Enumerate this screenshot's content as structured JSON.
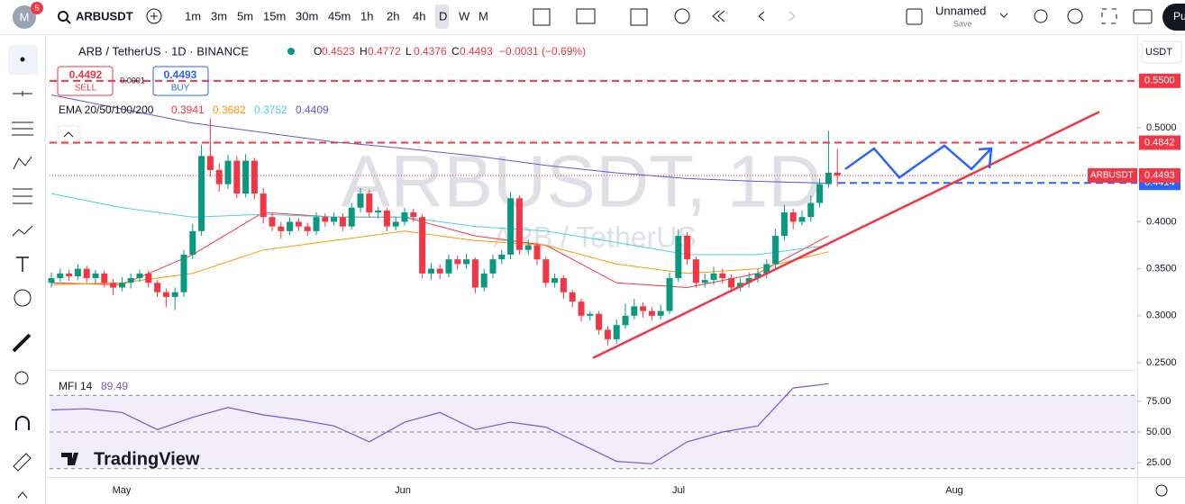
{
  "header": {
    "badge": "5",
    "symbol": "ARBUSDT",
    "intervals": [
      "1m",
      "3m",
      "5m",
      "15m",
      "30m",
      "45m",
      "1h",
      "2h",
      "4h",
      "D",
      "W",
      "M"
    ],
    "layout_name": "Unnamed",
    "save": "Save",
    "cut_button": "Pu"
  },
  "legend": {
    "symbol_line": "ARB / TetherUS · 1D · BINANCE",
    "ohlc": [
      {
        "label": "O",
        "value": 0.4523
      },
      {
        "label": "H",
        "value": 0.4772
      },
      {
        "label": "L",
        "value": 0.4376
      },
      {
        "label": "C",
        "value": 0.4493
      }
    ],
    "change": "−0.0031 (−0.69%)",
    "sell": {
      "price": 0.4492,
      "label": "SELL"
    },
    "buy": {
      "price": 0.4493,
      "label": "BUY"
    },
    "spread": 0.0001,
    "ema_title": "EMA 20/50/100/200",
    "ema_values": [
      0.3941,
      0.3682,
      0.3752,
      0.4409
    ]
  },
  "watermark": {
    "symbol": "ARBUSDT, 1D",
    "name": "ARB / TetherUS"
  },
  "brand": "TradingView",
  "currency": "USDT",
  "chart_data": {
    "type": "candlestick",
    "up_color": "#089981",
    "down_color": "#f23645",
    "candles": [
      [
        0.335,
        0.346,
        0.33,
        0.34
      ],
      [
        0.34,
        0.35,
        0.336,
        0.345
      ],
      [
        0.345,
        0.349,
        0.337,
        0.342
      ],
      [
        0.342,
        0.355,
        0.338,
        0.35
      ],
      [
        0.35,
        0.353,
        0.335,
        0.34
      ],
      [
        0.34,
        0.349,
        0.334,
        0.345
      ],
      [
        0.345,
        0.348,
        0.33,
        0.335
      ],
      [
        0.335,
        0.339,
        0.322,
        0.33
      ],
      [
        0.33,
        0.341,
        0.326,
        0.335
      ],
      [
        0.335,
        0.345,
        0.329,
        0.34
      ],
      [
        0.34,
        0.349,
        0.336,
        0.345
      ],
      [
        0.345,
        0.348,
        0.33,
        0.335
      ],
      [
        0.335,
        0.338,
        0.32,
        0.325
      ],
      [
        0.325,
        0.329,
        0.309,
        0.32
      ],
      [
        0.32,
        0.33,
        0.306,
        0.325
      ],
      [
        0.325,
        0.37,
        0.32,
        0.365
      ],
      [
        0.365,
        0.398,
        0.36,
        0.39
      ],
      [
        0.39,
        0.482,
        0.385,
        0.47
      ],
      [
        0.47,
        0.51,
        0.448,
        0.455
      ],
      [
        0.455,
        0.462,
        0.432,
        0.44
      ],
      [
        0.44,
        0.471,
        0.435,
        0.465
      ],
      [
        0.465,
        0.47,
        0.425,
        0.43
      ],
      [
        0.43,
        0.472,
        0.426,
        0.465
      ],
      [
        0.465,
        0.468,
        0.424,
        0.43
      ],
      [
        0.43,
        0.436,
        0.398,
        0.405
      ],
      [
        0.405,
        0.41,
        0.39,
        0.395
      ],
      [
        0.395,
        0.4,
        0.382,
        0.39
      ],
      [
        0.39,
        0.405,
        0.386,
        0.4
      ],
      [
        0.4,
        0.404,
        0.39,
        0.395
      ],
      [
        0.395,
        0.399,
        0.385,
        0.39
      ],
      [
        0.39,
        0.41,
        0.386,
        0.405
      ],
      [
        0.405,
        0.409,
        0.395,
        0.4
      ],
      [
        0.4,
        0.41,
        0.396,
        0.405
      ],
      [
        0.405,
        0.409,
        0.39,
        0.395
      ],
      [
        0.395,
        0.42,
        0.392,
        0.415
      ],
      [
        0.415,
        0.436,
        0.41,
        0.43
      ],
      [
        0.43,
        0.434,
        0.405,
        0.41
      ],
      [
        0.41,
        0.416,
        0.404,
        0.412
      ],
      [
        0.412,
        0.415,
        0.39,
        0.395
      ],
      [
        0.395,
        0.405,
        0.391,
        0.4
      ],
      [
        0.4,
        0.415,
        0.396,
        0.41
      ],
      [
        0.41,
        0.414,
        0.4,
        0.405
      ],
      [
        0.405,
        0.408,
        0.34,
        0.345
      ],
      [
        0.345,
        0.356,
        0.338,
        0.35
      ],
      [
        0.35,
        0.355,
        0.339,
        0.345
      ],
      [
        0.345,
        0.365,
        0.341,
        0.36
      ],
      [
        0.36,
        0.364,
        0.349,
        0.355
      ],
      [
        0.355,
        0.366,
        0.35,
        0.36
      ],
      [
        0.36,
        0.362,
        0.324,
        0.33
      ],
      [
        0.33,
        0.35,
        0.326,
        0.345
      ],
      [
        0.345,
        0.365,
        0.34,
        0.36
      ],
      [
        0.36,
        0.37,
        0.355,
        0.365
      ],
      [
        0.365,
        0.432,
        0.36,
        0.425
      ],
      [
        0.425,
        0.428,
        0.365,
        0.37
      ],
      [
        0.37,
        0.381,
        0.365,
        0.375
      ],
      [
        0.375,
        0.378,
        0.354,
        0.36
      ],
      [
        0.36,
        0.363,
        0.33,
        0.335
      ],
      [
        0.335,
        0.345,
        0.33,
        0.34
      ],
      [
        0.34,
        0.343,
        0.318,
        0.325
      ],
      [
        0.325,
        0.328,
        0.309,
        0.315
      ],
      [
        0.315,
        0.318,
        0.294,
        0.3
      ],
      [
        0.3,
        0.305,
        0.295,
        0.302
      ],
      [
        0.302,
        0.305,
        0.28,
        0.285
      ],
      [
        0.285,
        0.289,
        0.268,
        0.275
      ],
      [
        0.275,
        0.296,
        0.27,
        0.29
      ],
      [
        0.29,
        0.313,
        0.286,
        0.3
      ],
      [
        0.3,
        0.318,
        0.296,
        0.31
      ],
      [
        0.31,
        0.314,
        0.298,
        0.305
      ],
      [
        0.305,
        0.309,
        0.295,
        0.3
      ],
      [
        0.3,
        0.312,
        0.296,
        0.305
      ],
      [
        0.305,
        0.346,
        0.302,
        0.34
      ],
      [
        0.34,
        0.392,
        0.336,
        0.385
      ],
      [
        0.385,
        0.389,
        0.354,
        0.36
      ],
      [
        0.36,
        0.363,
        0.33,
        0.335
      ],
      [
        0.335,
        0.345,
        0.33,
        0.338
      ],
      [
        0.338,
        0.352,
        0.333,
        0.345
      ],
      [
        0.345,
        0.35,
        0.334,
        0.34
      ],
      [
        0.34,
        0.344,
        0.325,
        0.33
      ],
      [
        0.33,
        0.34,
        0.326,
        0.335
      ],
      [
        0.335,
        0.346,
        0.33,
        0.34
      ],
      [
        0.34,
        0.35,
        0.335,
        0.345
      ],
      [
        0.345,
        0.36,
        0.34,
        0.355
      ],
      [
        0.355,
        0.392,
        0.35,
        0.385
      ],
      [
        0.385,
        0.418,
        0.38,
        0.41
      ],
      [
        0.41,
        0.414,
        0.392,
        0.4
      ],
      [
        0.4,
        0.412,
        0.396,
        0.405
      ],
      [
        0.405,
        0.428,
        0.4,
        0.42
      ],
      [
        0.42,
        0.446,
        0.415,
        0.44
      ],
      [
        0.44,
        0.497,
        0.436,
        0.4523
      ],
      [
        0.4523,
        0.4772,
        0.4376,
        0.4493
      ]
    ],
    "ema": [
      {
        "color": "#f23645",
        "values": [
          0.335,
          0.333,
          0.365,
          0.41,
          0.405,
          0.405,
          0.385,
          0.375,
          0.335,
          0.33,
          0.345,
          0.385
        ]
      },
      {
        "color": "#ff9800",
        "values": [
          0.333,
          0.335,
          0.345,
          0.37,
          0.38,
          0.39,
          0.38,
          0.375,
          0.355,
          0.345,
          0.35,
          0.368
        ]
      },
      {
        "color": "#4dd0e1",
        "values": [
          0.43,
          0.415,
          0.405,
          0.408,
          0.405,
          0.405,
          0.395,
          0.39,
          0.378,
          0.365,
          0.365,
          0.375
        ]
      },
      {
        "color": "#5b5bd6",
        "values": [
          0.535,
          0.52,
          0.505,
          0.495,
          0.485,
          0.478,
          0.47,
          0.46,
          0.452,
          0.446,
          0.443,
          0.441
        ]
      }
    ],
    "ylim": [
      0.2433,
      0.5958
    ],
    "yticks": [
      {
        "value": 0.25,
        "label": "0.2500"
      },
      {
        "value": 0.3,
        "label": "0.3000"
      },
      {
        "value": 0.35,
        "label": "0.3500"
      },
      {
        "value": 0.4,
        "label": "0.4000"
      },
      {
        "value": 0.5,
        "label": "0.5000"
      }
    ],
    "xlabels": [
      "May",
      "Jun",
      "Jul",
      "Aug"
    ],
    "levels": [
      {
        "value": 0.55,
        "label": "0.5500",
        "color": "#f23645"
      },
      {
        "value": 0.4842,
        "label": "0.4842",
        "color": "#f23645"
      },
      {
        "value": 0.4414,
        "label": "0.4414",
        "color": "#2962ff"
      }
    ],
    "last_price": {
      "value": 0.4493,
      "label": "0.4493",
      "color": "#f23645"
    },
    "trendline": {
      "color": "#f23645",
      "values": [
        0.255,
        0.517
      ]
    },
    "zigzag": {
      "color": "#2962ff",
      "values": [
        0.456,
        0.478,
        0.447,
        0.481,
        0.456,
        0.478
      ]
    }
  },
  "mfi": {
    "title": "MFI 14",
    "value": 89.49,
    "color": "#7e57c2",
    "ylim": [
      13.2,
      99.3
    ],
    "yticks": [
      {
        "value": 25,
        "label": "25.00"
      },
      {
        "value": 50,
        "label": "50.00"
      },
      {
        "value": 75,
        "label": "75.00"
      }
    ],
    "bands": [
      80,
      50,
      20
    ],
    "values": [
      68,
      69,
      66,
      52,
      62,
      70,
      64,
      60,
      55,
      42,
      58,
      66,
      52,
      58,
      54,
      40,
      26,
      24,
      42,
      50,
      55,
      86,
      89.49
    ]
  }
}
